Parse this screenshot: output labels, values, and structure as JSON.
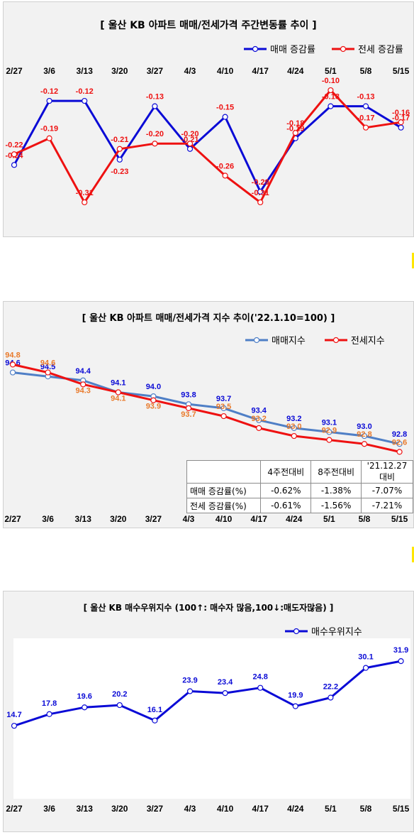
{
  "charts": [
    {
      "title": "[  울산  KB 아파트 매매/전세가격 주간변동률 추이  ]",
      "legend": [
        "매매 증감률",
        "전세 증감률"
      ]
    },
    {
      "title": "[  울산  KB 아파트 매매/전세가격 지수 추이('22.1.10=100)  ]",
      "legend": [
        "매매지수",
        "전세지수"
      ],
      "table": {
        "headers": [
          "",
          "4주전대비",
          "8주전대비",
          "'21.12.27대비"
        ],
        "rows": [
          [
            "매매 증감률(%)",
            "-0.62%",
            "-1.38%",
            "-7.07%"
          ],
          [
            "전세 증감률(%)",
            "-0.61%",
            "-1.56%",
            "-7.21%"
          ]
        ]
      }
    },
    {
      "title": "[  울산  KB 매수우위지수 (100↑: 매수자 많음,100↓:매도자많음)  ]",
      "legend": [
        "매수우위지수"
      ]
    }
  ],
  "colors": {
    "blue": "#0a0ad6",
    "red": "#ee1111",
    "steel": "#4f7fc6",
    "orange": "#e97a2b",
    "panel": "#f2f2f2"
  },
  "chart_data": [
    {
      "type": "line",
      "title": "[  울산  KB 아파트 매매/전세가격 주간변동률 추이  ]",
      "x": [
        "2/27",
        "3/6",
        "3/13",
        "3/20",
        "3/27",
        "4/3",
        "4/10",
        "4/17",
        "4/24",
        "5/1",
        "5/8",
        "5/15"
      ],
      "series": [
        {
          "name": "매매 증감률",
          "values": [
            -0.24,
            -0.12,
            -0.12,
            -0.23,
            -0.13,
            -0.21,
            -0.15,
            -0.29,
            -0.19,
            -0.13,
            -0.13,
            -0.17
          ]
        },
        {
          "name": "전세 증감률",
          "values": [
            -0.22,
            -0.19,
            -0.31,
            -0.21,
            -0.2,
            -0.2,
            -0.26,
            -0.31,
            -0.18,
            -0.1,
            -0.17,
            -0.16
          ]
        }
      ],
      "ylim": [
        -0.33,
        -0.08
      ],
      "grid": false,
      "legend": "top-right"
    },
    {
      "type": "line",
      "title": "[  울산  KB 아파트 매매/전세가격 지수 추이('22.1.10=100)  ]",
      "x": [
        "2/27",
        "3/6",
        "3/13",
        "3/20",
        "3/27",
        "4/3",
        "4/10",
        "4/17",
        "4/24",
        "5/1",
        "5/8",
        "5/15"
      ],
      "series": [
        {
          "name": "매매지수",
          "values": [
            94.6,
            94.5,
            94.4,
            94.1,
            94.0,
            93.8,
            93.7,
            93.4,
            93.2,
            93.1,
            93.0,
            92.8
          ]
        },
        {
          "name": "전세지수",
          "values": [
            94.8,
            94.6,
            94.3,
            94.1,
            93.9,
            93.7,
            93.5,
            93.2,
            93.0,
            92.9,
            92.8,
            92.6
          ]
        }
      ],
      "ylim": [
        92.5,
        94.95
      ],
      "grid": false,
      "legend": "top-right"
    },
    {
      "type": "line",
      "title": "[  울산  KB 매수우위지수 (100↑: 매수자 많음,100↓:매도자많음)  ]",
      "x": [
        "2/27",
        "3/6",
        "3/13",
        "3/20",
        "3/27",
        "4/3",
        "4/10",
        "4/17",
        "4/24",
        "5/1",
        "5/8",
        "5/15"
      ],
      "series": [
        {
          "name": "매수우위지수",
          "values": [
            14.7,
            17.8,
            19.6,
            20.2,
            16.1,
            23.9,
            23.4,
            24.8,
            19.9,
            22.2,
            30.1,
            31.9
          ]
        }
      ],
      "ylim": [
        0,
        34
      ],
      "grid": false,
      "legend": "top-right"
    }
  ]
}
